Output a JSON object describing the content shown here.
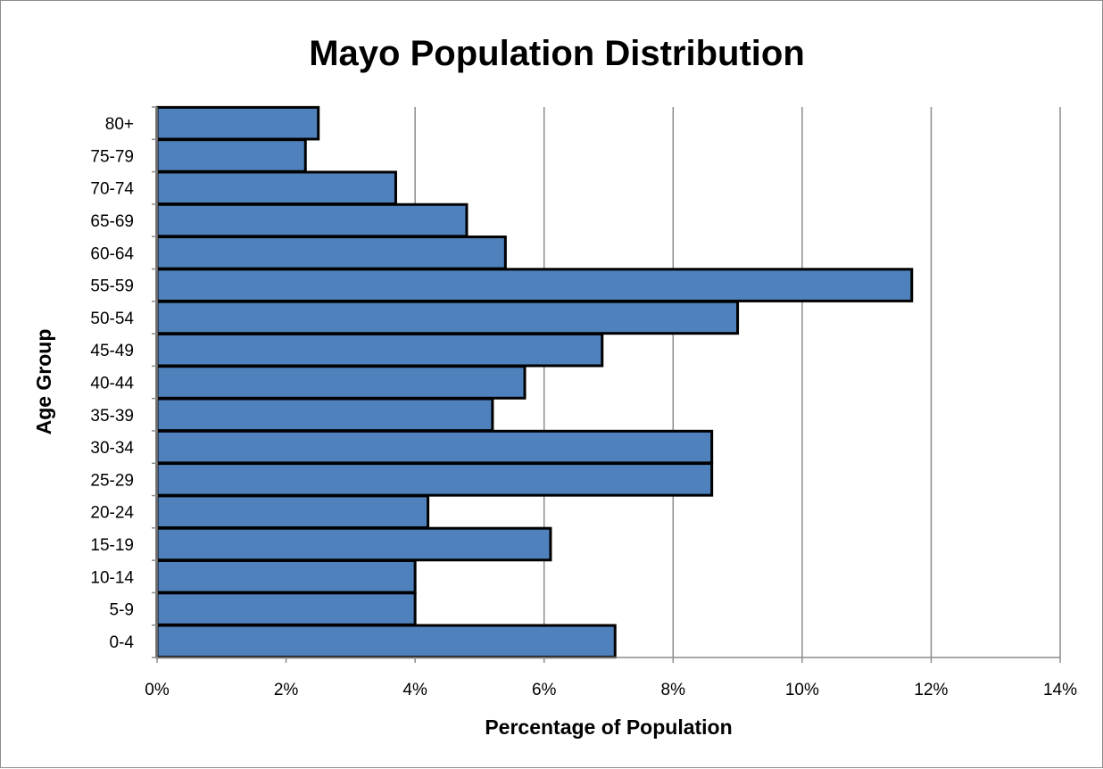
{
  "chart_data": {
    "type": "bar",
    "orientation": "horizontal",
    "title": "Mayo Population Distribution",
    "xlabel": "Percentage of Population",
    "ylabel": "Age Group",
    "categories": [
      "0-4",
      "5-9",
      "10-14",
      "15-19",
      "20-24",
      "25-29",
      "30-34",
      "35-39",
      "40-44",
      "45-49",
      "50-54",
      "55-59",
      "60-64",
      "65-69",
      "70-74",
      "75-79",
      "80+"
    ],
    "values": [
      7.1,
      4.0,
      4.0,
      6.1,
      4.2,
      8.6,
      8.6,
      5.2,
      5.7,
      6.9,
      9.0,
      11.7,
      5.4,
      4.8,
      3.7,
      2.3,
      2.5
    ],
    "xlim": [
      0,
      14
    ],
    "xticks": [
      0,
      2,
      4,
      6,
      8,
      10,
      12,
      14
    ],
    "xtick_labels": [
      "0%",
      "2%",
      "4%",
      "6%",
      "8%",
      "10%",
      "12%",
      "14%"
    ],
    "grid": "vertical",
    "legend": "none",
    "colors": {
      "bar_fill": "#4f81bd",
      "bar_stroke": "#000000",
      "grid": "#8c8c8c",
      "axis": "#8c8c8c"
    }
  }
}
